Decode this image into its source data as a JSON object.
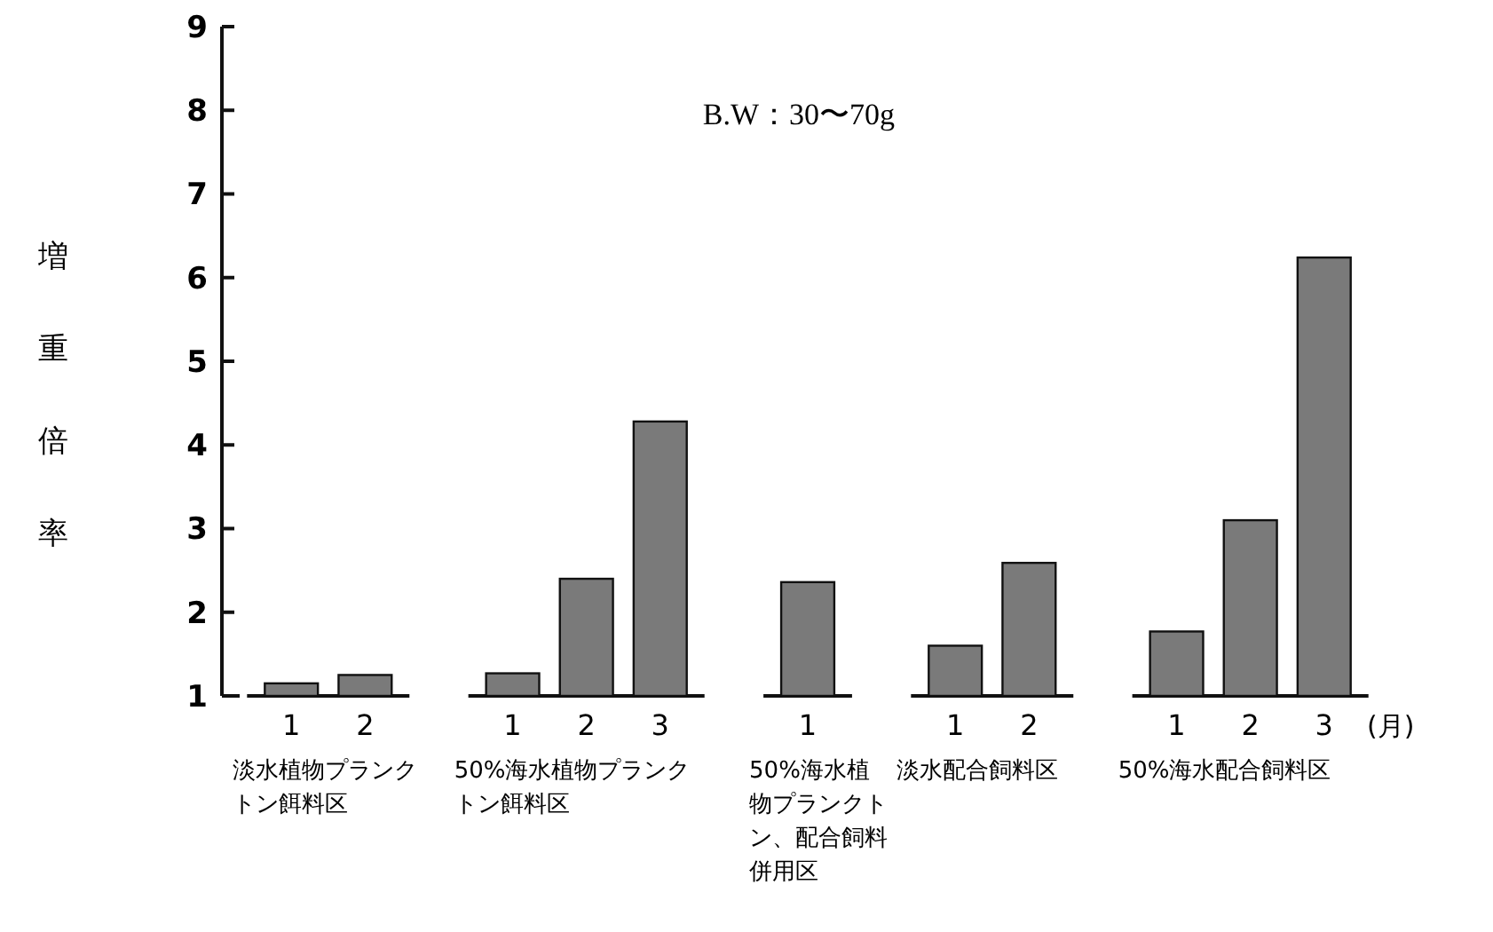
{
  "chart_data": {
    "type": "bar",
    "title": "B.W：30〜70g",
    "ylabel": "増重倍率",
    "xlabel": "(月)",
    "categories": [
      "1",
      "2",
      null,
      "1",
      "2",
      "3",
      null,
      "1",
      null,
      "1",
      "2",
      null,
      "1",
      "2",
      "3"
    ],
    "values": [
      1.15,
      1.25,
      null,
      1.27,
      2.4,
      4.28,
      null,
      2.36,
      null,
      1.6,
      2.59,
      null,
      1.77,
      3.1,
      6.24
    ],
    "color": "#7a7a7a",
    "ylim": [
      1,
      9
    ],
    "yticks": [
      1,
      2,
      3,
      4,
      5,
      6,
      7,
      8,
      9
    ],
    "grid": false,
    "annotations": [
      "淡水植物プランクトン餌料区",
      "50%海水植物プランクトン餌料区",
      "50%海水植物プランクトン、配合飼料併用区",
      "淡水配合飼料区",
      "50%海水配合飼料区"
    ]
  }
}
